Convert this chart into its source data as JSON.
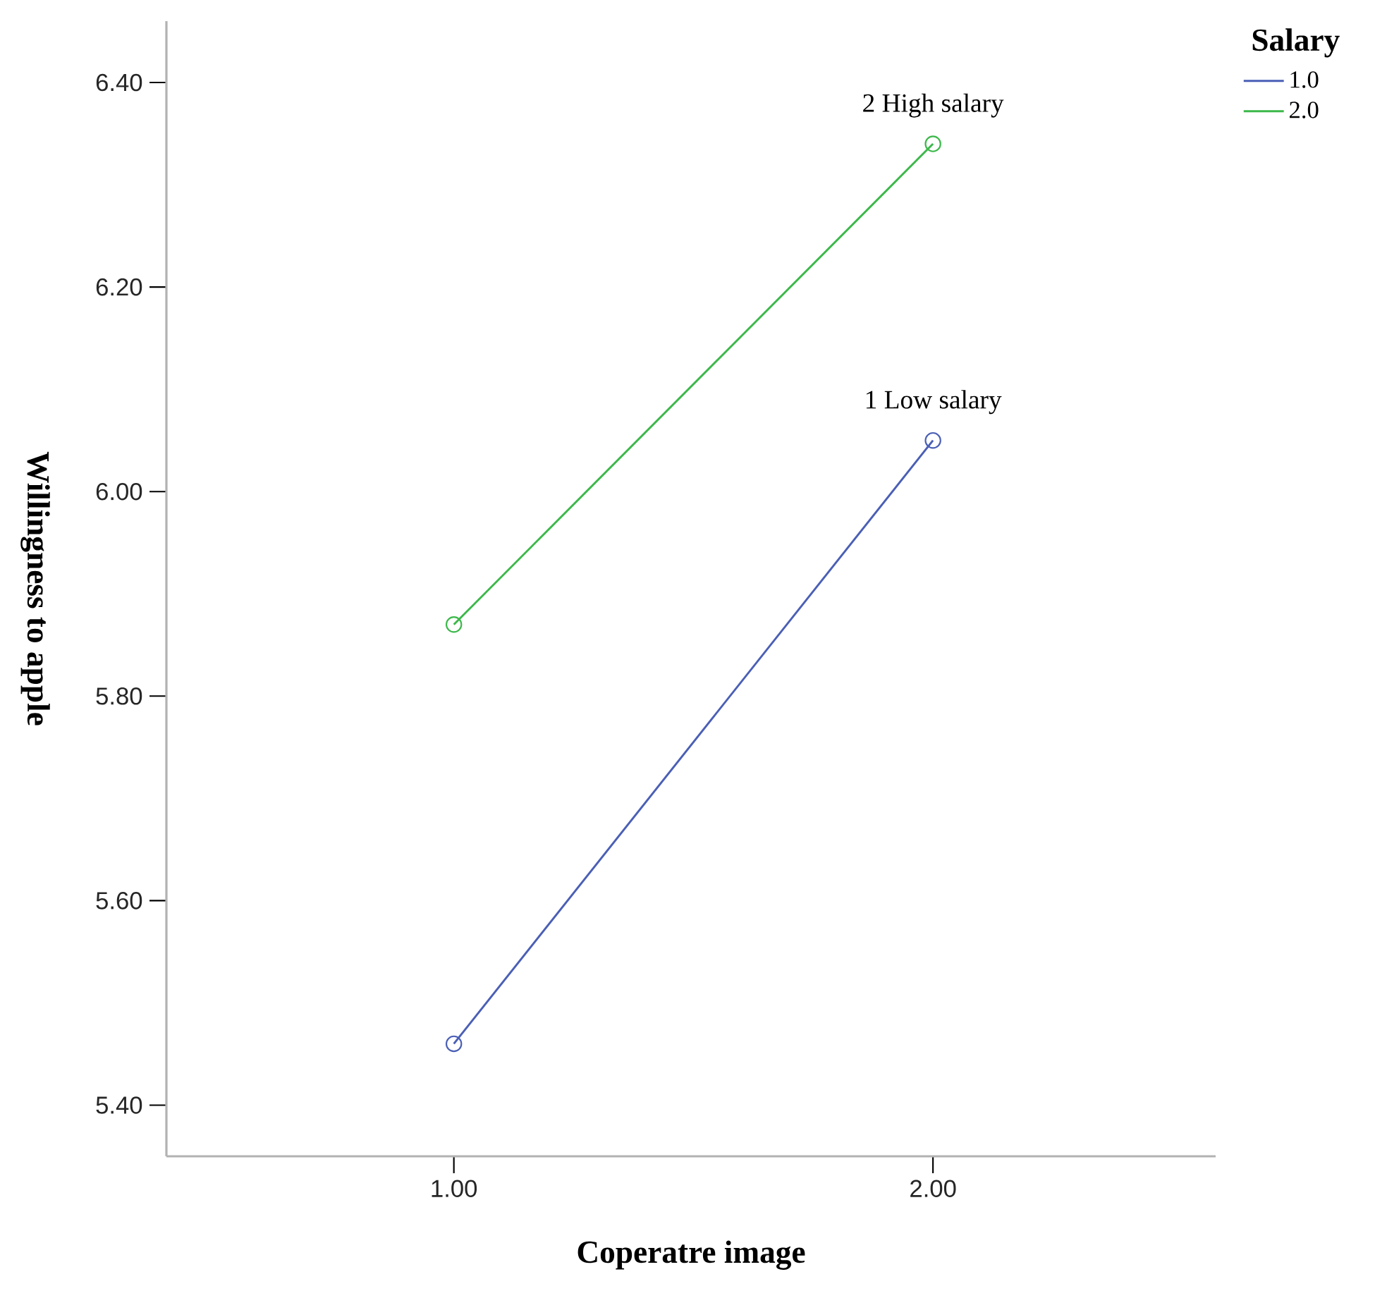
{
  "chart_data": {
    "type": "line",
    "xlabel": "Coperatre image",
    "ylabel": "Willingness to apple",
    "legend_title": "Salary",
    "legend": "top right",
    "marker": "circle",
    "x": [
      1,
      2
    ],
    "xlim": [
      0.4,
      2.59
    ],
    "xticks": [
      {
        "value": 1,
        "label": "1.00"
      },
      {
        "value": 2,
        "label": "2.00"
      }
    ],
    "ylim": [
      5.35,
      6.46
    ],
    "yticks": [
      {
        "value": 5.4,
        "label": "5.40"
      },
      {
        "value": 5.6,
        "label": "5.60"
      },
      {
        "value": 5.8,
        "label": "5.80"
      },
      {
        "value": 6.0,
        "label": "6.00"
      },
      {
        "value": 6.2,
        "label": "6.20"
      },
      {
        "value": 6.4,
        "label": "6.40"
      }
    ],
    "series": [
      {
        "name": "1.0",
        "color": "#4a5fb5",
        "values": [
          5.46,
          6.05
        ]
      },
      {
        "name": "2.0",
        "color": "#3cb84a",
        "values": [
          5.87,
          6.34
        ]
      }
    ],
    "annotations": [
      {
        "text": "2 High salary",
        "x": 2,
        "y": 6.34
      },
      {
        "text": "1 Low salary",
        "x": 2,
        "y": 6.05
      }
    ]
  }
}
